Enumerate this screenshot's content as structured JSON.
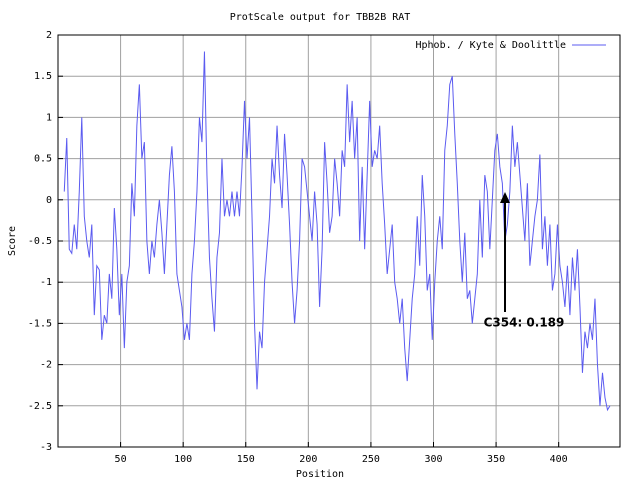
{
  "chart_data": {
    "type": "line",
    "title": "ProtScale output for TBB2B RAT",
    "x_label": "Position",
    "y_label": "Score",
    "annotation": "C354: 0.189",
    "xlim": [
      0,
      449
    ],
    "ylim": [
      -3,
      2
    ],
    "xticks": [
      50,
      100,
      150,
      200,
      250,
      300,
      350,
      400
    ],
    "yticks": [
      -3,
      -2.5,
      -2,
      -1.5,
      -1,
      -0.5,
      0,
      0.5,
      1,
      1.5,
      2
    ],
    "grid": true,
    "legend": "top-right",
    "x": [
      5,
      7,
      9,
      11,
      13,
      15,
      17,
      19,
      21,
      23,
      25,
      27,
      29,
      31,
      33,
      35,
      37,
      39,
      41,
      43,
      45,
      47,
      49,
      51,
      53,
      55,
      57,
      59,
      61,
      63,
      65,
      67,
      69,
      71,
      73,
      75,
      77,
      79,
      81,
      83,
      85,
      87,
      89,
      91,
      93,
      95,
      97,
      99,
      101,
      103,
      105,
      107,
      109,
      111,
      113,
      115,
      117,
      119,
      121,
      123,
      125,
      127,
      129,
      131,
      133,
      135,
      137,
      139,
      141,
      143,
      145,
      147,
      149,
      151,
      153,
      155,
      157,
      159,
      161,
      163,
      165,
      167,
      169,
      171,
      173,
      175,
      177,
      179,
      181,
      183,
      185,
      187,
      189,
      191,
      193,
      195,
      197,
      199,
      201,
      203,
      205,
      207,
      209,
      211,
      213,
      215,
      217,
      219,
      221,
      223,
      225,
      227,
      229,
      231,
      233,
      235,
      237,
      239,
      241,
      243,
      245,
      247,
      249,
      251,
      253,
      255,
      257,
      259,
      261,
      263,
      265,
      267,
      269,
      271,
      273,
      275,
      277,
      279,
      281,
      283,
      285,
      287,
      289,
      291,
      293,
      295,
      297,
      299,
      301,
      303,
      305,
      307,
      309,
      311,
      313,
      315,
      317,
      319,
      321,
      323,
      325,
      327,
      329,
      331,
      333,
      335,
      337,
      339,
      341,
      343,
      345,
      347,
      349,
      351,
      353,
      355,
      357,
      359,
      361,
      363,
      365,
      367,
      369,
      371,
      373,
      375,
      377,
      379,
      381,
      383,
      385,
      387,
      389,
      391,
      393,
      395,
      397,
      399,
      401,
      403,
      405,
      407,
      409,
      411,
      413,
      415,
      417,
      419,
      421,
      423,
      425,
      427,
      429,
      431,
      433,
      435,
      437,
      439,
      441
    ],
    "series": [
      {
        "name": "Hphob. / Kyte & Doolittle",
        "color": "#5b5bf0",
        "values": [
          0.1,
          0.75,
          -0.6,
          -0.65,
          -0.3,
          -0.6,
          0.1,
          1.0,
          -0.2,
          -0.5,
          -0.7,
          -0.3,
          -1.4,
          -0.8,
          -0.85,
          -1.7,
          -1.4,
          -1.5,
          -0.9,
          -1.2,
          -0.1,
          -0.6,
          -1.4,
          -0.9,
          -1.8,
          -1.0,
          -0.8,
          0.2,
          -0.2,
          0.9,
          1.4,
          0.5,
          0.7,
          -0.5,
          -0.9,
          -0.5,
          -0.7,
          -0.3,
          0.0,
          -0.4,
          -0.9,
          -0.3,
          0.3,
          0.65,
          0.1,
          -0.9,
          -1.1,
          -1.3,
          -1.7,
          -1.5,
          -1.7,
          -0.9,
          -0.5,
          0.1,
          1.0,
          0.7,
          1.8,
          0.3,
          -0.7,
          -1.2,
          -1.6,
          -0.7,
          -0.4,
          0.5,
          -0.2,
          0.0,
          -0.2,
          0.1,
          -0.2,
          0.1,
          -0.2,
          0.4,
          1.2,
          0.5,
          1.0,
          -0.2,
          -1.5,
          -2.3,
          -1.6,
          -1.8,
          -1.0,
          -0.6,
          -0.2,
          0.5,
          0.2,
          0.9,
          0.3,
          -0.1,
          0.8,
          0.3,
          -0.3,
          -1.0,
          -1.5,
          -1.1,
          -0.5,
          0.5,
          0.4,
          0.1,
          -0.2,
          -0.5,
          0.1,
          -0.3,
          -1.3,
          -0.6,
          0.7,
          0.2,
          -0.4,
          -0.2,
          0.5,
          0.2,
          -0.2,
          0.6,
          0.4,
          1.4,
          0.7,
          1.2,
          0.5,
          1.0,
          -0.5,
          0.4,
          -0.6,
          0.3,
          1.2,
          0.4,
          0.6,
          0.5,
          0.9,
          0.2,
          -0.3,
          -0.9,
          -0.6,
          -0.3,
          -1.0,
          -1.2,
          -1.5,
          -1.2,
          -1.8,
          -2.2,
          -1.7,
          -1.2,
          -0.9,
          -0.2,
          -0.8,
          0.3,
          -0.2,
          -1.1,
          -0.9,
          -1.7,
          -1.0,
          -0.5,
          -0.2,
          -0.6,
          0.6,
          0.9,
          1.4,
          1.5,
          0.8,
          0.2,
          -0.5,
          -1.0,
          -0.4,
          -1.2,
          -1.1,
          -1.5,
          -1.2,
          -0.9,
          0.0,
          -0.7,
          0.3,
          0.1,
          -0.6,
          0.0,
          0.6,
          0.8,
          0.4,
          0.2,
          -0.5,
          -0.3,
          0.1,
          0.9,
          0.4,
          0.7,
          0.3,
          -0.1,
          -0.5,
          0.2,
          -0.8,
          -0.5,
          -0.2,
          0.0,
          0.55,
          -0.6,
          -0.2,
          -0.8,
          -0.3,
          -1.1,
          -0.9,
          -0.3,
          -0.8,
          -1.0,
          -1.3,
          -0.8,
          -1.4,
          -0.7,
          -1.1,
          -0.6,
          -1.3,
          -2.1,
          -1.6,
          -1.8,
          -1.5,
          -1.7,
          -1.2,
          -2.0,
          -2.5,
          -2.1,
          -2.4,
          -2.55,
          -2.5
        ]
      }
    ]
  }
}
